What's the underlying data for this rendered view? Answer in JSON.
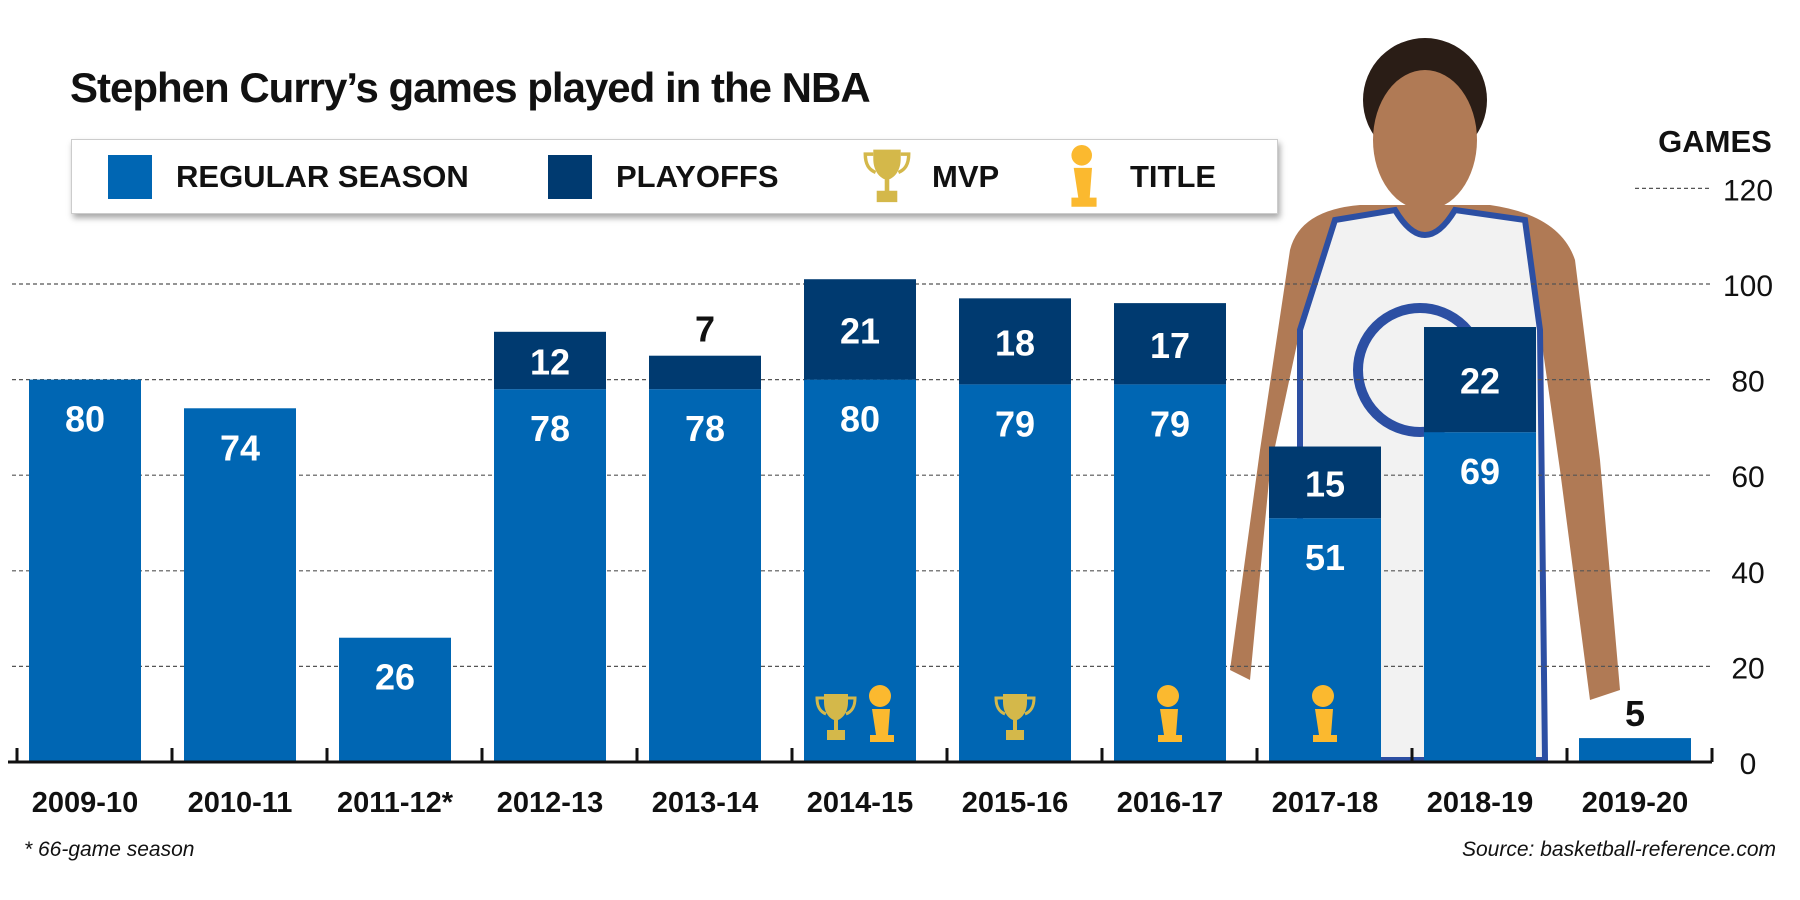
{
  "chart_data": {
    "type": "bar",
    "stacked": true,
    "title": "Stephen Curry’s games played in the NBA",
    "ylabel": "GAMES",
    "ylim": [
      0,
      120
    ],
    "yticks": [
      0,
      20,
      40,
      60,
      80,
      100,
      120
    ],
    "grid": true,
    "categories": [
      "2009-10",
      "2010-11",
      "2011-12*",
      "2012-13",
      "2013-14",
      "2014-15",
      "2015-16",
      "2016-17",
      "2017-18",
      "2018-19",
      "2019-20"
    ],
    "series": [
      {
        "name": "REGULAR SEASON",
        "color": "#0066b3",
        "values": [
          80,
          74,
          26,
          78,
          78,
          80,
          79,
          79,
          51,
          69,
          5
        ]
      },
      {
        "name": "PLAYOFFS",
        "color": "#003a70",
        "values": [
          0,
          0,
          0,
          12,
          7,
          21,
          18,
          17,
          15,
          22,
          0
        ]
      }
    ],
    "markers": {
      "mvp": {
        "name": "MVP",
        "icon": "trophy-icon",
        "color": "#d4b84a",
        "seasons": [
          "2014-15",
          "2015-16"
        ]
      },
      "title": {
        "name": "TITLE",
        "icon": "larry-obrien-trophy-icon",
        "color": "#fbb92f",
        "seasons": [
          "2014-15",
          "2016-17",
          "2017-18"
        ]
      }
    },
    "footnote": "* 66-game season",
    "source": "Source: basketball-reference.com"
  }
}
